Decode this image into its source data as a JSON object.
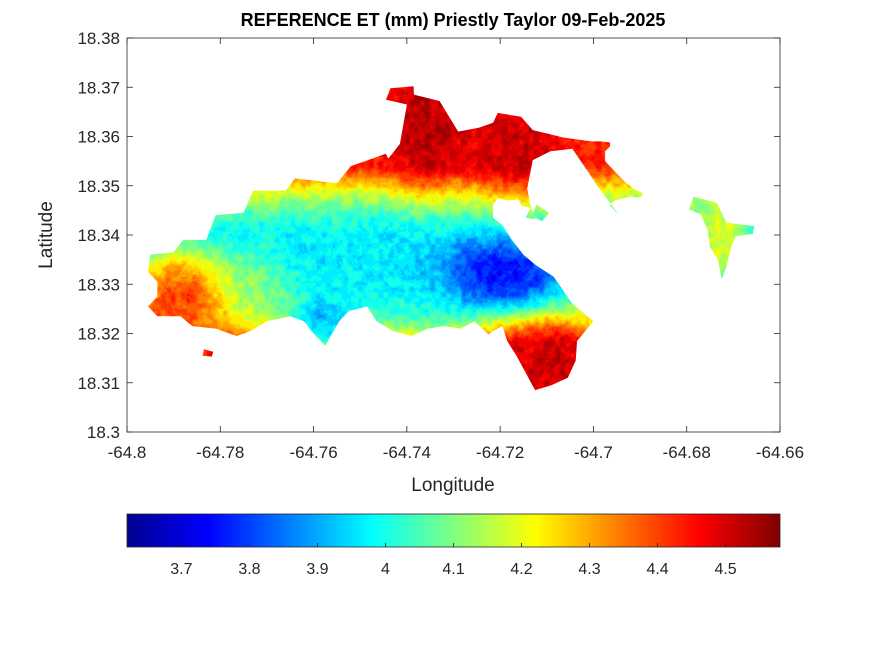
{
  "chart_data": {
    "type": "heatmap",
    "title": "REFERENCE ET (mm) Priestly Taylor 09-Feb-2025",
    "xlabel": "Longitude",
    "ylabel": "Latitude",
    "xlim": [
      -64.8,
      -64.66
    ],
    "ylim": [
      18.3,
      18.38
    ],
    "xticks": [
      -64.8,
      -64.78,
      -64.76,
      -64.74,
      -64.72,
      -64.7,
      -64.68,
      -64.66
    ],
    "xtick_labels": [
      "-64.8",
      "-64.78",
      "-64.76",
      "-64.74",
      "-64.72",
      "-64.7",
      "-64.68",
      "-64.66"
    ],
    "yticks": [
      18.3,
      18.31,
      18.32,
      18.33,
      18.34,
      18.35,
      18.36,
      18.37,
      18.38
    ],
    "ytick_labels": [
      "18.3",
      "18.31",
      "18.32",
      "18.33",
      "18.34",
      "18.35",
      "18.36",
      "18.37",
      "18.38"
    ],
    "grid": false,
    "colormap": "jet",
    "colorbar": {
      "orientation": "horizontal",
      "placement": "bottom",
      "range": [
        3.62,
        4.58
      ],
      "ticks": [
        3.7,
        3.8,
        3.9,
        4.0,
        4.1,
        4.2,
        4.3,
        4.4,
        4.5
      ],
      "tick_labels": [
        "3.7",
        "3.8",
        "3.9",
        "4",
        "4.1",
        "4.2",
        "4.3",
        "4.4",
        "4.5"
      ]
    },
    "island_outline": [
      [
        -64.795,
        18.336
      ],
      [
        -64.79,
        18.3365
      ],
      [
        -64.788,
        18.339
      ],
      [
        -64.783,
        18.339
      ],
      [
        -64.781,
        18.344
      ],
      [
        -64.775,
        18.3445
      ],
      [
        -64.773,
        18.349
      ],
      [
        -64.766,
        18.349
      ],
      [
        -64.764,
        18.3515
      ],
      [
        -64.755,
        18.3505
      ],
      [
        -64.752,
        18.354
      ],
      [
        -64.7445,
        18.3565
      ],
      [
        -64.744,
        18.3555
      ],
      [
        -64.7415,
        18.3585
      ],
      [
        -64.74,
        18.3665
      ],
      [
        -64.7445,
        18.3675
      ],
      [
        -64.7435,
        18.3698
      ],
      [
        -64.73858,
        18.3702
      ],
      [
        -64.7385,
        18.3685
      ],
      [
        -64.733,
        18.3672
      ],
      [
        -64.729,
        18.361
      ],
      [
        -64.7245,
        18.3618
      ],
      [
        -64.7215,
        18.3628
      ],
      [
        -64.7205,
        18.3648
      ],
      [
        -64.7155,
        18.364
      ],
      [
        -64.713,
        18.3613
      ],
      [
        -64.7095,
        18.3605
      ],
      [
        -64.7065,
        18.3598
      ],
      [
        -64.7005,
        18.359
      ],
      [
        -64.6985,
        18.359
      ],
      [
        -64.6965,
        18.3588
      ],
      [
        -64.6964,
        18.358
      ],
      [
        -64.6975,
        18.357
      ],
      [
        -64.6975,
        18.355
      ],
      [
        -64.6955,
        18.353
      ],
      [
        -64.6935,
        18.351
      ],
      [
        -64.6915,
        18.3495
      ],
      [
        -64.6895,
        18.3485
      ],
      [
        -64.6895,
        18.348
      ],
      [
        -64.6905,
        18.3476
      ],
      [
        -64.692,
        18.3478
      ],
      [
        -64.6935,
        18.3475
      ],
      [
        -64.6955,
        18.347
      ],
      [
        -64.6965,
        18.346
      ],
      [
        -64.6945,
        18.344
      ],
      [
        -64.699,
        18.3498
      ],
      [
        -64.7045,
        18.3575
      ],
      [
        -64.7092,
        18.357
      ],
      [
        -64.713,
        18.3552
      ],
      [
        -64.7142,
        18.3495
      ],
      [
        -64.7135,
        18.346
      ],
      [
        -64.7125,
        18.3432
      ],
      [
        -64.7145,
        18.3435
      ],
      [
        -64.7135,
        18.3455
      ],
      [
        -64.7155,
        18.346
      ],
      [
        -64.716,
        18.3472
      ],
      [
        -64.7185,
        18.347
      ],
      [
        -64.7205,
        18.3475
      ],
      [
        -64.7215,
        18.3462
      ],
      [
        -64.7215,
        18.3435
      ],
      [
        -64.7195,
        18.342
      ],
      [
        -64.7175,
        18.339
      ],
      [
        -64.715,
        18.336
      ],
      [
        -64.7125,
        18.334
      ],
      [
        -64.7085,
        18.3315
      ],
      [
        -64.7045,
        18.326
      ],
      [
        -64.7,
        18.3225
      ],
      [
        -64.7035,
        18.3185
      ],
      [
        -64.7038,
        18.3145
      ],
      [
        -64.7055,
        18.311
      ],
      [
        -64.709,
        18.3095
      ],
      [
        -64.7125,
        18.3085
      ],
      [
        -64.7148,
        18.3125
      ],
      [
        -64.7165,
        18.3155
      ],
      [
        -64.7185,
        18.3185
      ],
      [
        -64.7195,
        18.3215
      ],
      [
        -64.7215,
        18.3205
      ],
      [
        -64.7225,
        18.3198
      ],
      [
        -64.7255,
        18.3225
      ],
      [
        -64.7285,
        18.321
      ],
      [
        -64.732,
        18.3215
      ],
      [
        -64.7355,
        18.321
      ],
      [
        -64.739,
        18.3195
      ],
      [
        -64.743,
        18.3205
      ],
      [
        -64.7465,
        18.3225
      ],
      [
        -64.7485,
        18.3255
      ],
      [
        -64.7525,
        18.3245
      ],
      [
        -64.7545,
        18.3225
      ],
      [
        -64.7575,
        18.3175
      ],
      [
        -64.7605,
        18.3205
      ],
      [
        -64.762,
        18.3225
      ],
      [
        -64.765,
        18.3235
      ],
      [
        -64.77,
        18.3225
      ],
      [
        -64.7735,
        18.3205
      ],
      [
        -64.7765,
        18.3195
      ],
      [
        -64.781,
        18.321
      ],
      [
        -64.786,
        18.3215
      ],
      [
        -64.7885,
        18.3235
      ],
      [
        -64.7935,
        18.3235
      ],
      [
        -64.7955,
        18.3255
      ],
      [
        -64.7935,
        18.3275
      ],
      [
        -64.7935,
        18.3305
      ],
      [
        -64.7955,
        18.3325
      ]
    ],
    "small_islands": [
      [
        [
          -64.6785,
          18.3478
        ],
        [
          -64.6735,
          18.3465
        ],
        [
          -64.6715,
          18.3425
        ],
        [
          -64.6655,
          18.3418
        ],
        [
          -64.6658,
          18.3402
        ],
        [
          -64.6695,
          18.3398
        ],
        [
          -64.6705,
          18.3375
        ],
        [
          -64.6715,
          18.3335
        ],
        [
          -64.6725,
          18.331
        ],
        [
          -64.6733,
          18.335
        ],
        [
          -64.675,
          18.3375
        ],
        [
          -64.6755,
          18.341
        ],
        [
          -64.677,
          18.3442
        ],
        [
          -64.6795,
          18.3452
        ]
      ],
      [
        [
          -64.7122,
          18.3462
        ],
        [
          -64.7095,
          18.3445
        ],
        [
          -64.711,
          18.3428
        ],
        [
          -64.7132,
          18.3438
        ]
      ],
      [
        [
          -64.7835,
          18.3168
        ],
        [
          -64.7815,
          18.3163
        ],
        [
          -64.7818,
          18.3153
        ],
        [
          -64.7838,
          18.3155
        ]
      ]
    ],
    "hotspots": [
      {
        "lon": -64.7215,
        "lat": 18.3315,
        "value": 3.62,
        "sigma": [
          0.0075,
          0.0038
        ]
      },
      {
        "lon": -64.7575,
        "lat": 18.3215,
        "value": 3.78,
        "sigma": [
          0.0045,
          0.0035
        ]
      },
      {
        "lon": -64.7365,
        "lat": 18.3275,
        "value": 3.95,
        "sigma": [
          0.0075,
          0.0048
        ]
      },
      {
        "lon": -64.7485,
        "lat": 18.3325,
        "value": 3.98,
        "sigma": [
          0.011,
          0.0055
        ]
      },
      {
        "lon": -64.7735,
        "lat": 18.3295,
        "value": 4.15,
        "sigma": [
          0.005,
          0.0045
        ]
      },
      {
        "lon": -64.7885,
        "lat": 18.3285,
        "value": 4.55,
        "sigma": [
          0.006,
          0.0048
        ]
      },
      {
        "lon": -64.7355,
        "lat": 18.3615,
        "value": 4.58,
        "sigma": [
          0.0045,
          0.0065
        ]
      },
      {
        "lon": -64.7175,
        "lat": 18.3575,
        "value": 4.55,
        "sigma": [
          0.0055,
          0.0055
        ]
      },
      {
        "lon": -64.7105,
        "lat": 18.3135,
        "value": 4.55,
        "sigma": [
          0.0055,
          0.0045
        ]
      },
      {
        "lon": -64.6722,
        "lat": 18.3385,
        "value": 4.3,
        "sigma": [
          0.003,
          0.004
        ]
      }
    ],
    "base_field": {
      "lat_center": 18.336,
      "lat_scale": 0.014,
      "offset": 4.25,
      "amplitude": 0.3
    }
  }
}
